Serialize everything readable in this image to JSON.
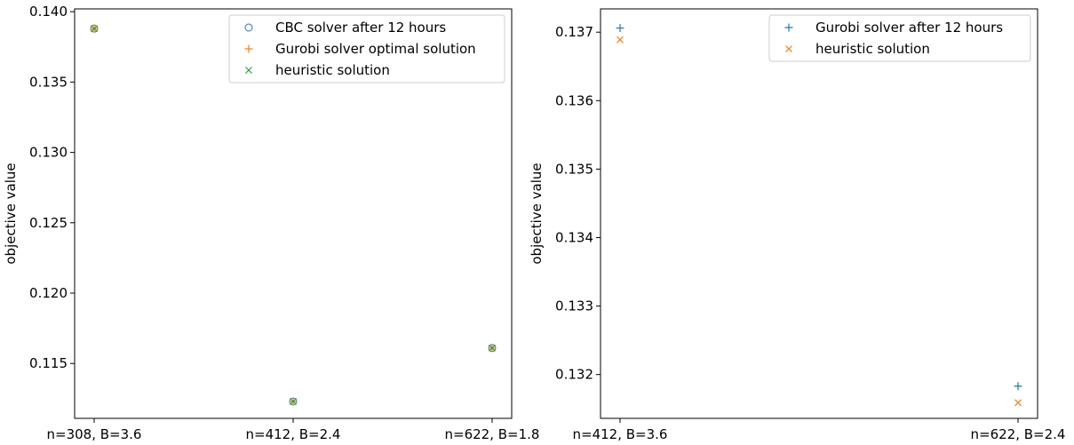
{
  "colors": {
    "c0": "#1f77b4",
    "c1": "#ff7f0e",
    "c2": "#2ca02c"
  },
  "chart_data": [
    {
      "type": "scatter",
      "xlabel": "",
      "ylabel": "objective value",
      "categories": [
        "n=308, B=3.6",
        "n=412, B=2.4",
        "n=622, B=1.8"
      ],
      "ylim": [
        0.1111,
        0.1402
      ],
      "yticks": [
        0.115,
        0.12,
        0.125,
        0.13,
        0.135,
        0.14
      ],
      "ytick_labels": [
        "0.115",
        "0.120",
        "0.125",
        "0.130",
        "0.135",
        "0.140"
      ],
      "legend_position": "top-right",
      "series": [
        {
          "name": "CBC solver after 12 hours",
          "marker": "circle",
          "color": "#1f77b4",
          "values": [
            0.1388,
            0.1123,
            0.1161
          ]
        },
        {
          "name": "Gurobi solver optimal solution",
          "marker": "plus",
          "color": "#ff7f0e",
          "values": [
            0.1388,
            0.1123,
            0.1161
          ]
        },
        {
          "name": "heuristic solution",
          "marker": "x",
          "color": "#2ca02c",
          "values": [
            0.1388,
            0.1123,
            0.1161
          ]
        }
      ]
    },
    {
      "type": "scatter",
      "xlabel": "",
      "ylabel": "objective value",
      "categories": [
        "n=412, B=3.6",
        "n=622, B=2.4"
      ],
      "ylim": [
        0.13136,
        0.13734
      ],
      "yticks": [
        0.132,
        0.133,
        0.134,
        0.135,
        0.136,
        0.137
      ],
      "ytick_labels": [
        "0.132",
        "0.133",
        "0.134",
        "0.135",
        "0.136",
        "0.137"
      ],
      "legend_position": "top-right",
      "series": [
        {
          "name": "Gurobi solver after 12 hours",
          "marker": "plus",
          "color": "#1f77b4",
          "values": [
            0.13706,
            0.13183
          ]
        },
        {
          "name": "heuristic solution",
          "marker": "x",
          "color": "#ff7f0e",
          "values": [
            0.13689,
            0.13159
          ]
        }
      ]
    }
  ]
}
